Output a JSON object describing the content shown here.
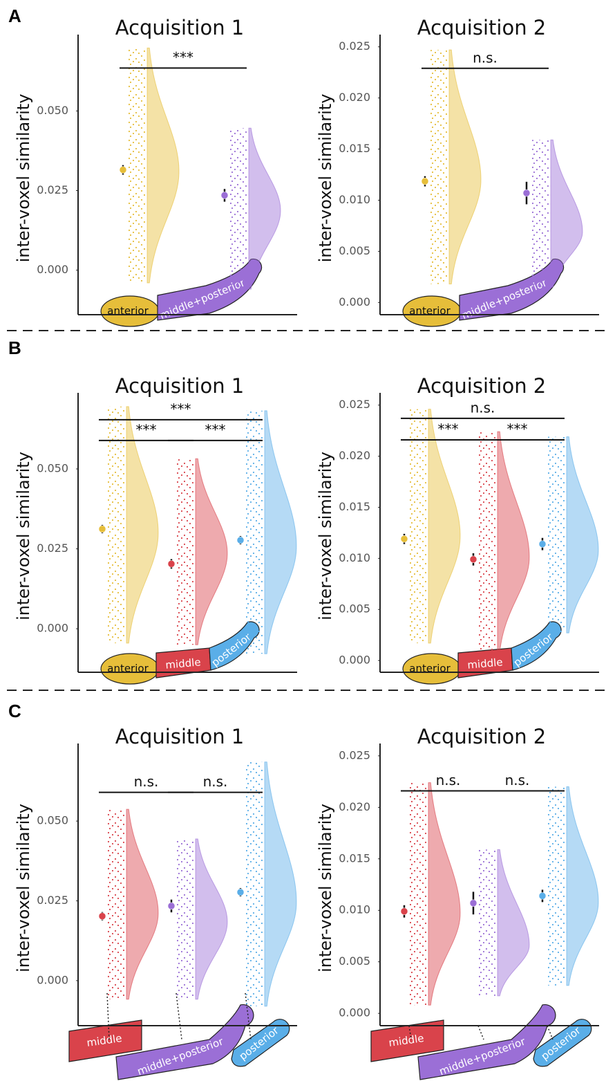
{
  "panel_labels": [
    "A",
    "B",
    "C"
  ],
  "chart_data": [
    {
      "type": "raincloud",
      "title": "Acquisition 1",
      "ylabel": "inter-voxel similarity",
      "ylim": [
        -0.014,
        0.074
      ],
      "yticks": [
        {
          "value": 0,
          "label": "0.000"
        },
        {
          "value": 0.025,
          "label": "0.025"
        },
        {
          "value": 0.05,
          "label": "0.050"
        }
      ],
      "series": [
        {
          "name": "anterior",
          "color": "#e6be3a",
          "mean": 0.0315,
          "ci": 0.0015,
          "min": -0.004,
          "peak": 0.031,
          "max": 0.0698
        },
        {
          "name": "middle+posterior",
          "color": "#9b6fd6",
          "mean": 0.0235,
          "ci": 0.002,
          "min": -0.006,
          "peak": 0.0187,
          "max": 0.0446
        }
      ],
      "brackets": [
        {
          "between": [
            0,
            1
          ],
          "y": 0.0635,
          "label": "***"
        }
      ]
    },
    {
      "type": "raincloud",
      "title": "Acquisition 2",
      "ylabel": "inter-voxel similarity",
      "ylim": [
        -0.0012,
        0.0262
      ],
      "yticks": [
        {
          "value": 0,
          "label": "0.000"
        },
        {
          "value": 0.005,
          "label": "0.005"
        },
        {
          "value": 0.01,
          "label": "0.010"
        },
        {
          "value": 0.015,
          "label": "0.015"
        },
        {
          "value": 0.02,
          "label": "0.020"
        },
        {
          "value": 0.025,
          "label": "0.025"
        }
      ],
      "series": [
        {
          "name": "anterior",
          "color": "#e6be3a",
          "mean": 0.01185,
          "ci": 0.0005,
          "min": 0.0018,
          "peak": 0.012,
          "max": 0.0247
        },
        {
          "name": "middle+posterior",
          "color": "#9b6fd6",
          "mean": 0.0107,
          "ci": 0.0011,
          "min": 0.0015,
          "peak": 0.0069,
          "max": 0.0159
        }
      ],
      "brackets": [
        {
          "between": [
            0,
            1
          ],
          "y": 0.0229,
          "label": "n.s."
        }
      ]
    },
    {
      "type": "raincloud",
      "title": "Acquisition 1",
      "ylabel": "inter-voxel similarity",
      "ylim": [
        -0.0136,
        0.0738
      ],
      "yticks": [
        {
          "value": 0,
          "label": "0.000"
        },
        {
          "value": 0.025,
          "label": "0.025"
        },
        {
          "value": 0.05,
          "label": "0.050"
        }
      ],
      "series": [
        {
          "name": "anterior",
          "color": "#e6be3a",
          "mean": 0.0312,
          "ci": 0.0013,
          "min": -0.0045,
          "peak": 0.03,
          "max": 0.0695
        },
        {
          "name": "middle",
          "color": "#d9434b",
          "mean": 0.0203,
          "ci": 0.0015,
          "min": -0.005,
          "peak": 0.0236,
          "max": 0.0532
        },
        {
          "name": "posterior",
          "color": "#5aaee8",
          "mean": 0.0277,
          "ci": 0.0013,
          "min": -0.0078,
          "peak": 0.0258,
          "max": 0.0682
        }
      ],
      "brackets": [
        {
          "between": [
            0,
            2
          ],
          "y": 0.0654,
          "label": "***"
        },
        {
          "between": [
            0,
            1
          ],
          "y": 0.0589,
          "label": "***"
        },
        {
          "between": [
            1,
            2
          ],
          "y": 0.0589,
          "label": "***"
        }
      ]
    },
    {
      "type": "raincloud",
      "title": "Acquisition 2",
      "ylabel": "inter-voxel similarity",
      "ylim": [
        -0.00115,
        0.0262
      ],
      "yticks": [
        {
          "value": 0,
          "label": "0.000"
        },
        {
          "value": 0.005,
          "label": "0.005"
        },
        {
          "value": 0.01,
          "label": "0.010"
        },
        {
          "value": 0.015,
          "label": "0.015"
        },
        {
          "value": 0.02,
          "label": "0.020"
        },
        {
          "value": 0.025,
          "label": "0.025"
        }
      ],
      "series": [
        {
          "name": "anterior",
          "color": "#e6be3a",
          "mean": 0.0119,
          "ci": 0.0005,
          "min": 0.0017,
          "peak": 0.0122,
          "max": 0.0246
        },
        {
          "name": "middle",
          "color": "#d9434b",
          "mean": 0.0099,
          "ci": 0.0006,
          "min": 0.0009,
          "peak": 0.0101,
          "max": 0.0224
        },
        {
          "name": "posterior",
          "color": "#5aaee8",
          "mean": 0.0114,
          "ci": 0.0006,
          "min": 0.0027,
          "peak": 0.0108,
          "max": 0.0219
        }
      ],
      "brackets": [
        {
          "between": [
            0,
            2
          ],
          "y": 0.0237,
          "label": "n.s."
        },
        {
          "between": [
            0,
            1
          ],
          "y": 0.0216,
          "label": "***"
        },
        {
          "between": [
            1,
            2
          ],
          "y": 0.0216,
          "label": "***"
        }
      ]
    },
    {
      "type": "raincloud",
      "title": "Acquisition 1",
      "ylabel": "inter-voxel similarity",
      "ylim": [
        -0.0141,
        0.0743
      ],
      "yticks": [
        {
          "value": 0,
          "label": "0.000"
        },
        {
          "value": 0.025,
          "label": "0.025"
        },
        {
          "value": 0.05,
          "label": "0.050"
        }
      ],
      "series": [
        {
          "name": "middle",
          "color": "#d9434b",
          "mean": 0.0202,
          "ci": 0.0013,
          "min": -0.0058,
          "peak": 0.0212,
          "max": 0.0537
        },
        {
          "name": "middle+posterior",
          "color": "#9b6fd6",
          "mean": 0.0234,
          "ci": 0.002,
          "min": -0.0058,
          "peak": 0.0184,
          "max": 0.0444
        },
        {
          "name": "posterior",
          "color": "#5aaee8",
          "mean": 0.0277,
          "ci": 0.0013,
          "min": -0.008,
          "peak": 0.0245,
          "max": 0.0685
        }
      ],
      "brackets": [
        {
          "between": [
            0,
            1
          ],
          "y": 0.059,
          "label": "n.s."
        },
        {
          "between": [
            1,
            2
          ],
          "y": 0.059,
          "label": "n.s."
        }
      ]
    },
    {
      "type": "raincloud",
      "title": "Acquisition 2",
      "ylabel": "inter-voxel similarity",
      "ylim": [
        -0.0012,
        0.0262
      ],
      "yticks": [
        {
          "value": 0,
          "label": "0.000"
        },
        {
          "value": 0.005,
          "label": "0.005"
        },
        {
          "value": 0.01,
          "label": "0.010"
        },
        {
          "value": 0.015,
          "label": "0.015"
        },
        {
          "value": 0.02,
          "label": "0.020"
        },
        {
          "value": 0.025,
          "label": "0.025"
        }
      ],
      "series": [
        {
          "name": "middle",
          "color": "#d9434b",
          "mean": 0.0099,
          "ci": 0.0006,
          "min": 0.0008,
          "peak": 0.0097,
          "max": 0.0224
        },
        {
          "name": "middle+posterior",
          "color": "#9b6fd6",
          "mean": 0.0107,
          "ci": 0.0011,
          "min": 0.0017,
          "peak": 0.0066,
          "max": 0.0159
        },
        {
          "name": "posterior",
          "color": "#5aaee8",
          "mean": 0.0114,
          "ci": 0.0006,
          "min": 0.0027,
          "peak": 0.0108,
          "max": 0.022
        }
      ],
      "brackets": [
        {
          "between": [
            0,
            1
          ],
          "y": 0.0216,
          "label": "n.s."
        },
        {
          "between": [
            1,
            2
          ],
          "y": 0.0216,
          "label": "n.s."
        }
      ]
    }
  ]
}
